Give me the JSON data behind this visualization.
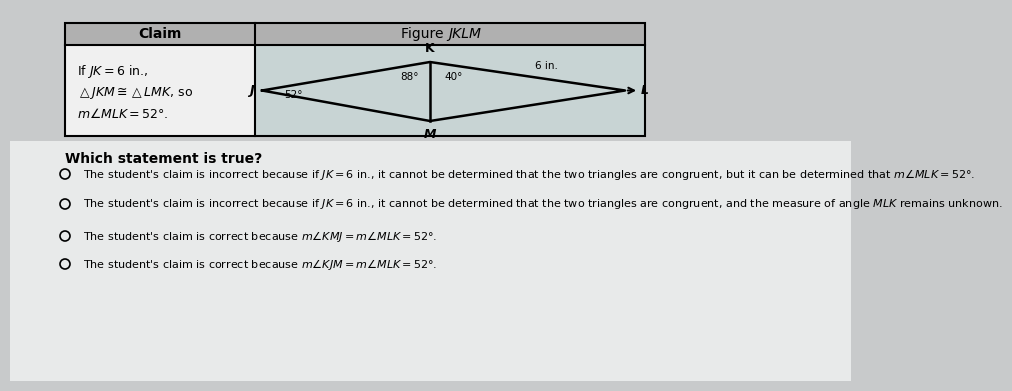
{
  "claim_header": "Claim",
  "fig_header_normal": "Figure ",
  "fig_header_italic": "JKLM",
  "claim_lines": [
    "If $JK = 6$ in.,",
    "$\\triangle JKM \\cong \\triangle LMK$, so",
    "$m\\angle MLK = 52°$."
  ],
  "angle_K_left": "88°",
  "angle_K_right": "40°",
  "angle_J": "52°",
  "side_label": "6 in.",
  "vertex_labels": [
    "K",
    "J",
    "L",
    "M"
  ],
  "question": "Which statement is true?",
  "options": [
    "The student's claim is incorrect because if $JK = 6$ in., it cannot be determined that the two triangles are congruent, but it can be determined that $m\\angle MLK = 52°$.",
    "The student's claim is incorrect because if $JK = 6$ in., it cannot be determined that the two triangles are congruent, and the measure of angle $MLK$ remains unknown.",
    "The student's claim is correct because $m\\angle KMJ = m\\angle MLK = 52°$.",
    "The student's claim is correct because $m\\angle KJM = m\\angle MLK = 52°$."
  ],
  "header_bg": "#b0b0b0",
  "claim_bg": "#f0f0f0",
  "figure_bg": "#d0d8d8",
  "outer_bg": "#c8cacb",
  "table_border": "#000000",
  "fig_area_bg": "#c8d4d4",
  "white_bg": "#e8eaea"
}
